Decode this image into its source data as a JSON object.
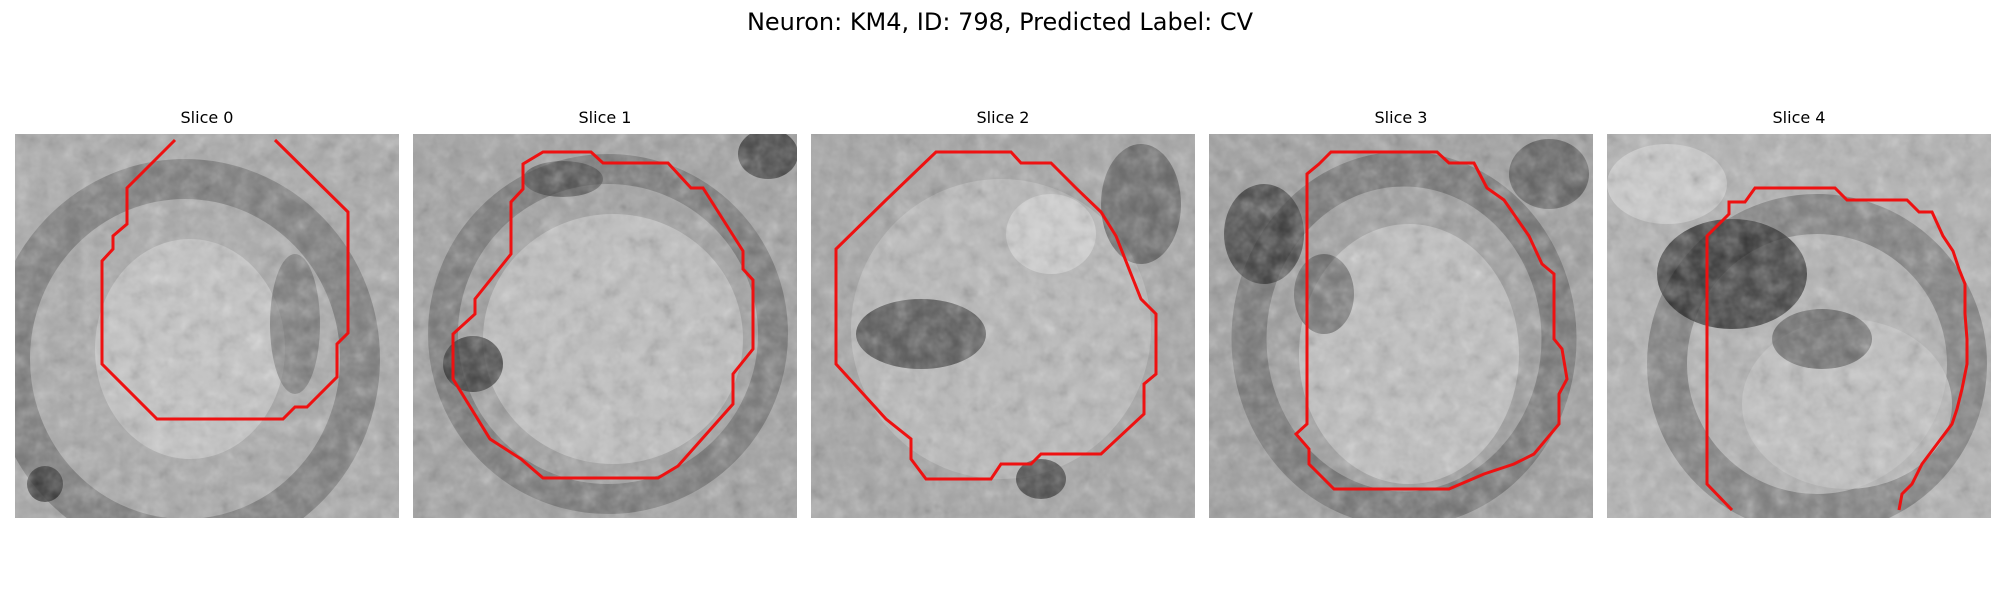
{
  "figure": {
    "title": "Neuron: KM4, ID: 798, Predicted Label: CV",
    "contour_color": "#ee1111"
  },
  "slices": [
    {
      "title": "Slice 0"
    },
    {
      "title": "Slice 1"
    },
    {
      "title": "Slice 2"
    },
    {
      "title": "Slice 3"
    },
    {
      "title": "Slice 4"
    }
  ]
}
